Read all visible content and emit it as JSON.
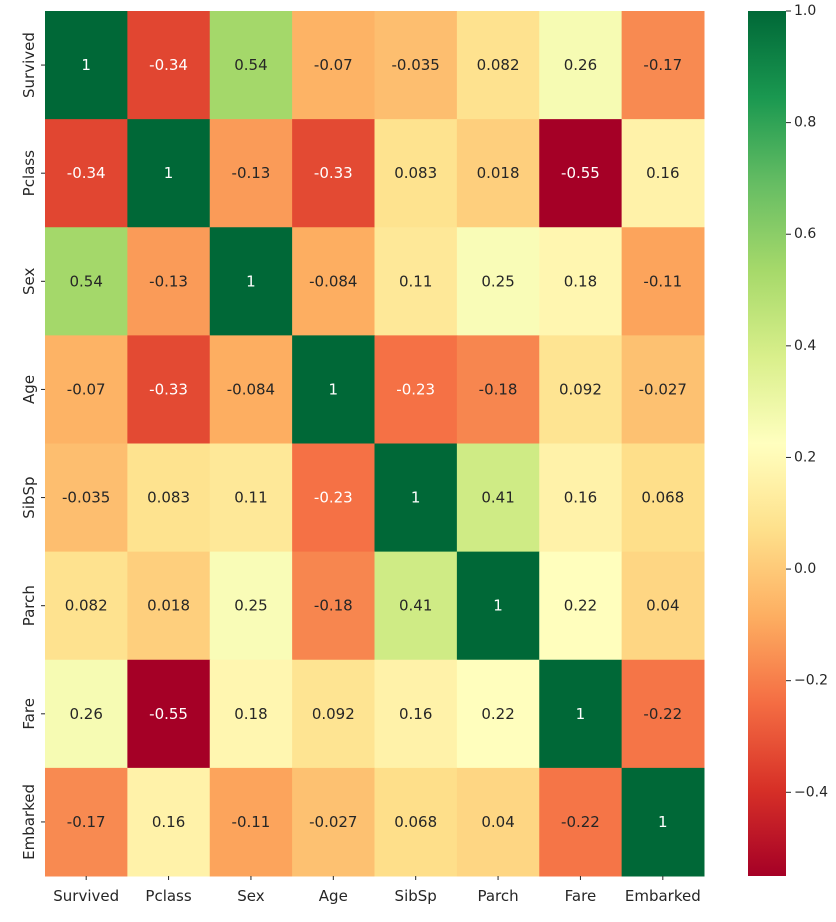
{
  "chart_data": {
    "type": "heatmap",
    "title": "",
    "xlabel": "",
    "ylabel": "",
    "columns": [
      "Survived",
      "Pclass",
      "Sex",
      "Age",
      "SibSp",
      "Parch",
      "Fare",
      "Embarked"
    ],
    "rows": [
      "Survived",
      "Pclass",
      "Sex",
      "Age",
      "SibSp",
      "Parch",
      "Fare",
      "Embarked"
    ],
    "values": [
      [
        1,
        -0.34,
        0.54,
        -0.07,
        -0.035,
        0.082,
        0.26,
        -0.17
      ],
      [
        -0.34,
        1,
        -0.13,
        -0.33,
        0.083,
        0.018,
        -0.55,
        0.16
      ],
      [
        0.54,
        -0.13,
        1,
        -0.084,
        0.11,
        0.25,
        0.18,
        -0.11
      ],
      [
        -0.07,
        -0.33,
        -0.084,
        1,
        -0.23,
        -0.18,
        0.092,
        -0.027
      ],
      [
        -0.035,
        0.083,
        0.11,
        -0.23,
        1,
        0.41,
        0.16,
        0.068
      ],
      [
        0.082,
        0.018,
        0.25,
        -0.18,
        0.41,
        1,
        0.22,
        0.04
      ],
      [
        0.26,
        -0.55,
        0.18,
        0.092,
        0.16,
        0.22,
        1,
        -0.22
      ],
      [
        -0.17,
        0.16,
        -0.11,
        -0.027,
        0.068,
        0.04,
        -0.22,
        1
      ]
    ],
    "annotations": [
      [
        "1",
        "-0.34",
        "0.54",
        "-0.07",
        "-0.035",
        "0.082",
        "0.26",
        "-0.17"
      ],
      [
        "-0.34",
        "1",
        "-0.13",
        "-0.33",
        "0.083",
        "0.018",
        "-0.55",
        "0.16"
      ],
      [
        "0.54",
        "-0.13",
        "1",
        "-0.084",
        "0.11",
        "0.25",
        "0.18",
        "-0.11"
      ],
      [
        "-0.07",
        "-0.33",
        "-0.084",
        "1",
        "-0.23",
        "-0.18",
        "0.092",
        "-0.027"
      ],
      [
        "-0.035",
        "0.083",
        "0.11",
        "-0.23",
        "1",
        "0.41",
        "0.16",
        "0.068"
      ],
      [
        "0.082",
        "0.018",
        "0.25",
        "-0.18",
        "0.41",
        "1",
        "0.22",
        "0.04"
      ],
      [
        "0.26",
        "-0.55",
        "0.18",
        "0.092",
        "0.16",
        "0.22",
        "1",
        "-0.22"
      ],
      [
        "-0.17",
        "0.16",
        "-0.11",
        "-0.027",
        "0.068",
        "0.04",
        "-0.22",
        "1"
      ]
    ],
    "colormap": "RdYlGn",
    "color_range": [
      -0.55,
      1.0
    ],
    "colorbar": {
      "ticks": [
        1.0,
        0.8,
        0.6,
        0.4,
        0.2,
        0.0,
        -0.2,
        -0.4
      ],
      "tick_labels": [
        "1.0",
        "0.8",
        "0.6",
        "0.4",
        "0.2",
        "0.0",
        "−0.2",
        "−0.4"
      ]
    },
    "grid": false
  }
}
